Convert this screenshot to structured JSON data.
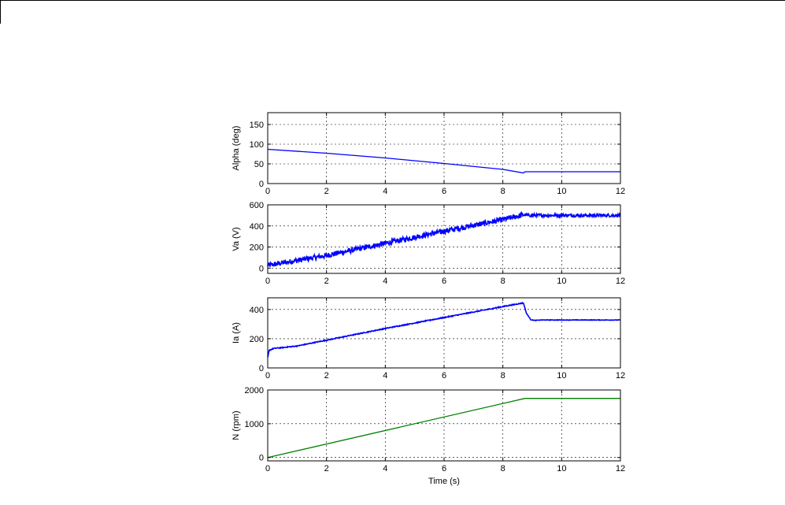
{
  "chart_data": [
    {
      "type": "line",
      "ylabel": "Alpha (deg)",
      "xlim": [
        0,
        12
      ],
      "ylim": [
        0,
        180
      ],
      "xticks": [
        0,
        2,
        4,
        6,
        8,
        10,
        12
      ],
      "yticks": [
        0,
        50,
        100,
        150
      ],
      "grid": true,
      "series": [
        {
          "color": "#0000ff",
          "noise": 0,
          "x": [
            0,
            2,
            4,
            6,
            8,
            8.7,
            8.75,
            12
          ],
          "y": [
            87,
            77,
            65,
            51,
            36,
            27,
            30,
            30
          ]
        }
      ]
    },
    {
      "type": "line",
      "ylabel": "Va (V)",
      "xlim": [
        0,
        12
      ],
      "ylim": [
        -50,
        600
      ],
      "xticks": [
        0,
        2,
        4,
        6,
        8,
        10,
        12
      ],
      "yticks": [
        0,
        200,
        400,
        600
      ],
      "grid": true,
      "series": [
        {
          "color": "#0000ff",
          "noise": 25,
          "x": [
            0,
            2,
            4,
            6,
            8,
            8.7,
            9,
            12
          ],
          "y": [
            25,
            120,
            235,
            350,
            460,
            505,
            500,
            500
          ]
        }
      ]
    },
    {
      "type": "line",
      "ylabel": "Ia (A)",
      "xlim": [
        0,
        12
      ],
      "ylim": [
        0,
        480
      ],
      "xticks": [
        0,
        2,
        4,
        6,
        8,
        10,
        12
      ],
      "yticks": [
        0,
        200,
        400
      ],
      "grid": true,
      "series": [
        {
          "color": "#0000ff",
          "noise": 3,
          "x": [
            0,
            0.05,
            0.2,
            1,
            2,
            4,
            6,
            8,
            8.7,
            8.8,
            8.95,
            9.1,
            9.3,
            12
          ],
          "y": [
            70,
            120,
            133,
            150,
            190,
            270,
            345,
            420,
            445,
            375,
            330,
            325,
            328,
            328
          ]
        }
      ]
    },
    {
      "type": "line",
      "ylabel": "N (rpm)",
      "xlabel": "Time (s)",
      "xlim": [
        0,
        12
      ],
      "ylim": [
        -100,
        2000
      ],
      "xticks": [
        0,
        2,
        4,
        6,
        8,
        10,
        12
      ],
      "yticks": [
        0,
        1000,
        2000
      ],
      "grid": true,
      "series": [
        {
          "color": "#008000",
          "noise": 0,
          "x": [
            0,
            8.75,
            12
          ],
          "y": [
            0,
            1750,
            1750
          ]
        }
      ]
    }
  ]
}
